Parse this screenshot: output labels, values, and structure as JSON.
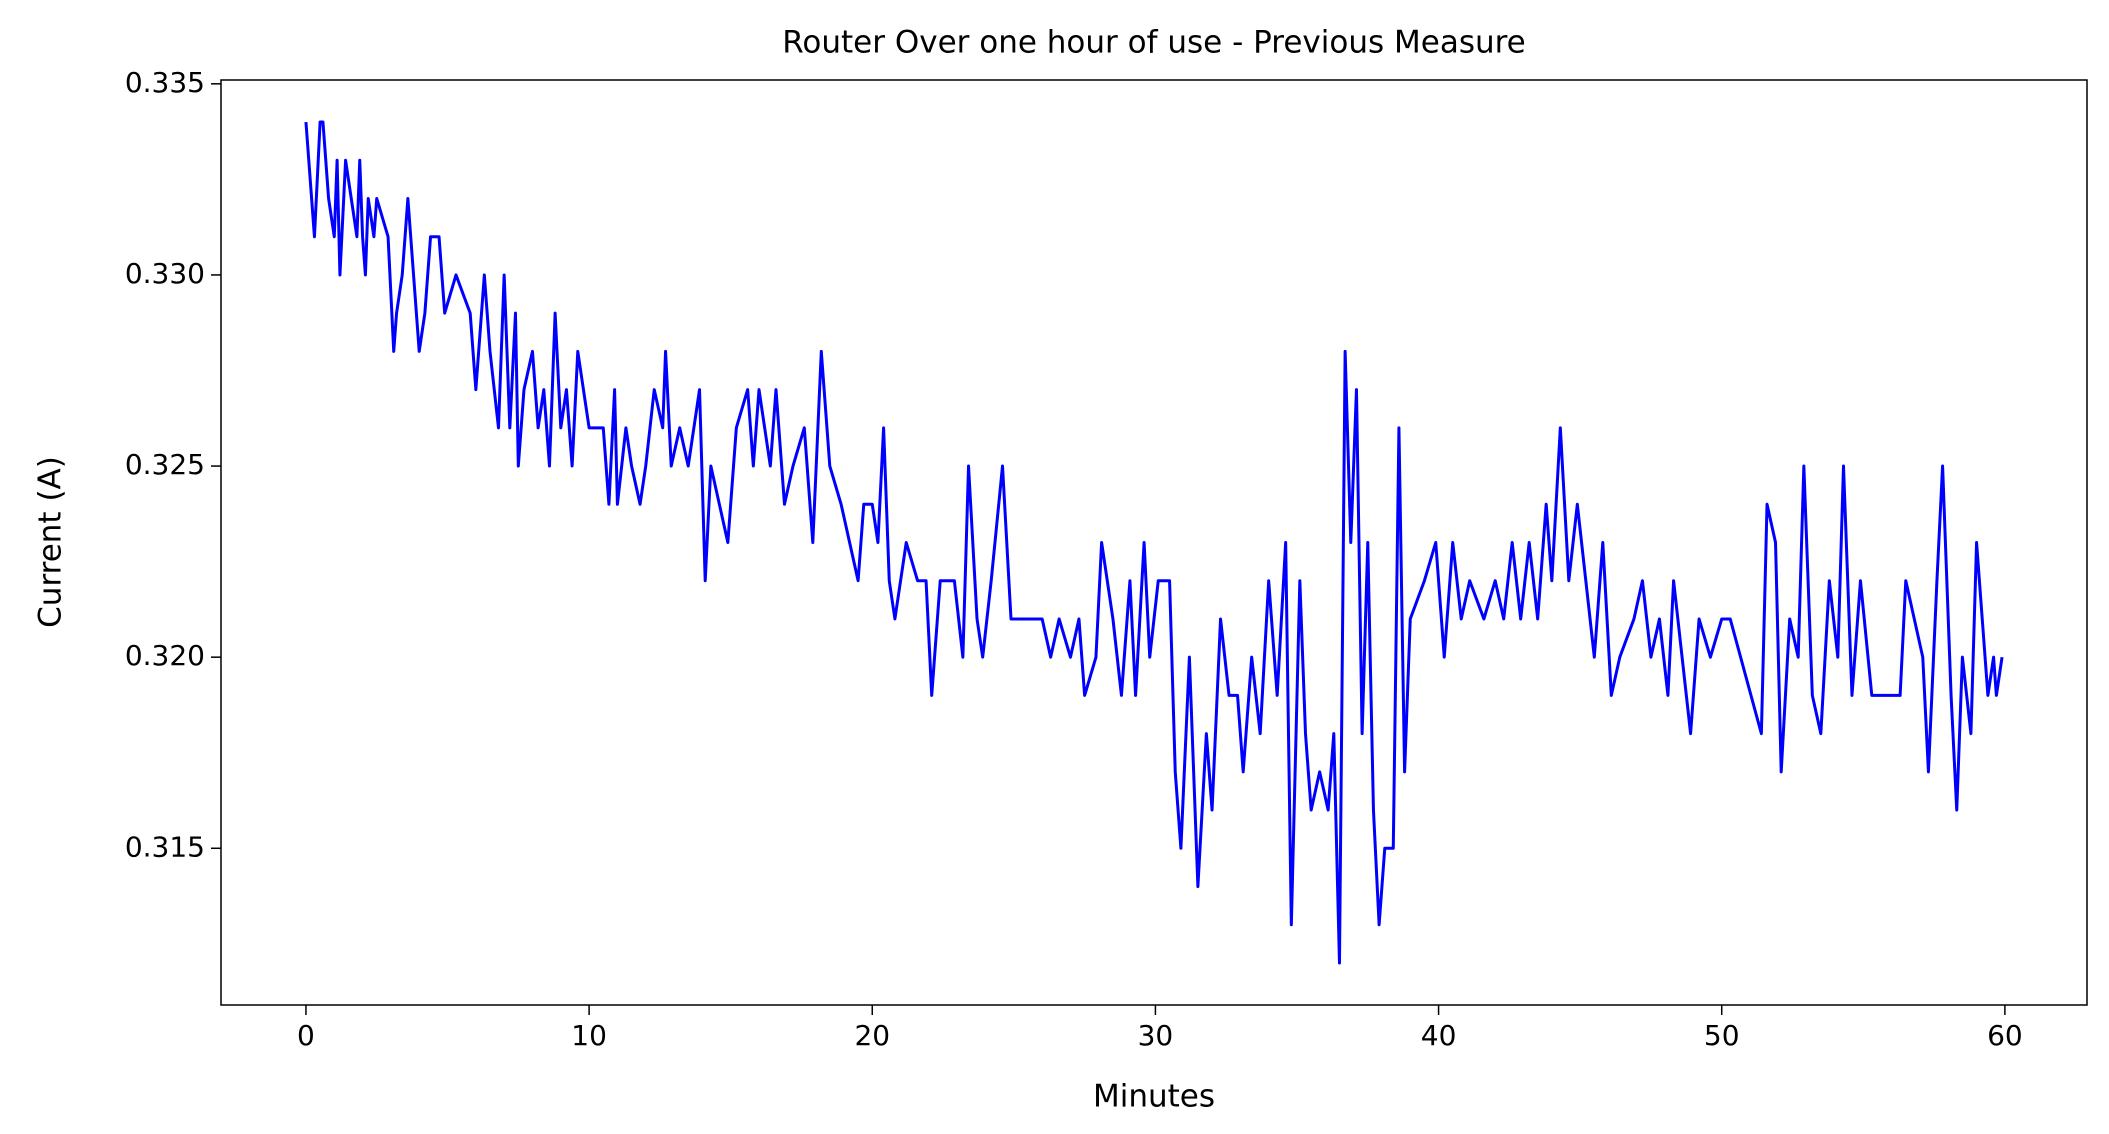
{
  "chart_data": {
    "type": "line",
    "title": "Router Over one hour of use -  Previous Measure",
    "xlabel": "Minutes",
    "ylabel": "Current (A)",
    "xlim": [
      -3.0,
      62.9
    ],
    "ylim": [
      0.3109,
      0.3351
    ],
    "xticks": [
      0,
      10,
      20,
      30,
      40,
      50,
      60
    ],
    "yticks": [
      0.315,
      {
        "value": 0.32,
        "label": "0.320"
      },
      0.325,
      {
        "value": 0.33,
        "label": "0.330"
      },
      0.335
    ],
    "grid": false,
    "series": [
      {
        "color": "#0000ff",
        "x": [
          0.0,
          0.1,
          0.3,
          0.5,
          0.6,
          0.8,
          1.0,
          1.1,
          1.2,
          1.4,
          1.6,
          1.8,
          1.9,
          2.0,
          2.1,
          2.2,
          2.4,
          2.5,
          2.9,
          3.1,
          3.2,
          3.4,
          3.6,
          3.8,
          4.0,
          4.2,
          4.4,
          4.7,
          4.9,
          5.3,
          5.8,
          6.0,
          6.3,
          6.5,
          6.8,
          7.0,
          7.2,
          7.4,
          7.5,
          7.7,
          8.0,
          8.2,
          8.4,
          8.6,
          8.8,
          9.0,
          9.2,
          9.4,
          9.6,
          9.8,
          10.0,
          10.5,
          10.7,
          10.9,
          11.0,
          11.3,
          11.5,
          11.8,
          12.0,
          12.3,
          12.6,
          12.7,
          12.9,
          13.2,
          13.5,
          13.9,
          14.1,
          14.3,
          14.6,
          14.9,
          15.2,
          15.6,
          15.8,
          16.0,
          16.4,
          16.6,
          16.9,
          17.2,
          17.6,
          17.9,
          18.2,
          18.5,
          18.9,
          19.2,
          19.5,
          19.7,
          20.0,
          20.2,
          20.4,
          20.6,
          20.8,
          21.2,
          21.6,
          21.9,
          22.1,
          22.4,
          22.9,
          23.2,
          23.4,
          23.7,
          23.9,
          24.2,
          24.6,
          24.9,
          25.3,
          25.6,
          26.0,
          26.3,
          26.6,
          27.0,
          27.3,
          27.5,
          27.9,
          28.1,
          28.5,
          28.8,
          29.1,
          29.3,
          29.6,
          29.8,
          30.1,
          30.5,
          30.7,
          30.9,
          31.2,
          31.5,
          31.8,
          32.0,
          32.3,
          32.6,
          32.9,
          33.1,
          33.4,
          33.7,
          34.0,
          34.3,
          34.6,
          34.8,
          35.1,
          35.3,
          35.5,
          35.8,
          36.1,
          36.3,
          36.5,
          36.7,
          36.9,
          37.1,
          37.3,
          37.5,
          37.7,
          37.9,
          38.1,
          38.4,
          38.6,
          38.8,
          39.0,
          39.5,
          39.9,
          40.2,
          40.5,
          40.8,
          41.1,
          41.6,
          42.0,
          42.3,
          42.6,
          42.9,
          43.2,
          43.5,
          43.8,
          44.0,
          44.3,
          44.6,
          44.9,
          45.2,
          45.5,
          45.8,
          46.1,
          46.4,
          46.9,
          47.2,
          47.5,
          47.8,
          48.1,
          48.3,
          48.6,
          48.9,
          49.2,
          49.6,
          50.0,
          50.3,
          51.4,
          51.6,
          51.9,
          52.1,
          52.4,
          52.7,
          52.9,
          53.2,
          53.5,
          53.8,
          54.1,
          54.3,
          54.6,
          54.9,
          55.3,
          56.3,
          56.5,
          57.1,
          57.3,
          57.6,
          57.8,
          58.1,
          58.3,
          58.5,
          58.8,
          59.0,
          59.2,
          59.4,
          59.6,
          59.7,
          59.9
        ],
        "values": [
          0.334,
          0.333,
          0.331,
          0.334,
          0.334,
          0.332,
          0.331,
          0.333,
          0.33,
          0.333,
          0.332,
          0.331,
          0.333,
          0.331,
          0.33,
          0.332,
          0.331,
          0.332,
          0.331,
          0.328,
          0.329,
          0.33,
          0.332,
          0.33,
          0.328,
          0.329,
          0.331,
          0.331,
          0.329,
          0.33,
          0.329,
          0.327,
          0.33,
          0.328,
          0.326,
          0.33,
          0.326,
          0.329,
          0.325,
          0.327,
          0.328,
          0.326,
          0.327,
          0.325,
          0.329,
          0.326,
          0.327,
          0.325,
          0.328,
          0.327,
          0.326,
          0.326,
          0.324,
          0.327,
          0.324,
          0.326,
          0.325,
          0.324,
          0.325,
          0.327,
          0.326,
          0.328,
          0.325,
          0.326,
          0.325,
          0.327,
          0.322,
          0.325,
          0.324,
          0.323,
          0.326,
          0.327,
          0.325,
          0.327,
          0.325,
          0.327,
          0.324,
          0.325,
          0.326,
          0.323,
          0.328,
          0.325,
          0.324,
          0.323,
          0.322,
          0.324,
          0.324,
          0.323,
          0.326,
          0.322,
          0.321,
          0.323,
          0.322,
          0.322,
          0.319,
          0.322,
          0.322,
          0.32,
          0.325,
          0.321,
          0.32,
          0.322,
          0.325,
          0.321,
          0.321,
          0.321,
          0.321,
          0.32,
          0.321,
          0.32,
          0.321,
          0.319,
          0.32,
          0.323,
          0.321,
          0.319,
          0.322,
          0.319,
          0.323,
          0.32,
          0.322,
          0.322,
          0.317,
          0.315,
          0.32,
          0.314,
          0.318,
          0.316,
          0.321,
          0.319,
          0.319,
          0.317,
          0.32,
          0.318,
          0.322,
          0.319,
          0.323,
          0.313,
          0.322,
          0.318,
          0.316,
          0.317,
          0.316,
          0.318,
          0.312,
          0.328,
          0.323,
          0.327,
          0.318,
          0.323,
          0.316,
          0.313,
          0.315,
          0.315,
          0.326,
          0.317,
          0.321,
          0.322,
          0.323,
          0.32,
          0.323,
          0.321,
          0.322,
          0.321,
          0.322,
          0.321,
          0.323,
          0.321,
          0.323,
          0.321,
          0.324,
          0.322,
          0.326,
          0.322,
          0.324,
          0.322,
          0.32,
          0.323,
          0.319,
          0.32,
          0.321,
          0.322,
          0.32,
          0.321,
          0.319,
          0.322,
          0.32,
          0.318,
          0.321,
          0.32,
          0.321,
          0.321,
          0.318,
          0.324,
          0.323,
          0.317,
          0.321,
          0.32,
          0.325,
          0.319,
          0.318,
          0.322,
          0.32,
          0.325,
          0.319,
          0.322,
          0.319,
          0.319,
          0.322,
          0.32,
          0.317,
          0.322,
          0.325,
          0.319,
          0.316,
          0.32,
          0.318,
          0.323,
          0.321,
          0.319,
          0.32,
          0.319,
          0.32
        ]
      }
    ]
  }
}
